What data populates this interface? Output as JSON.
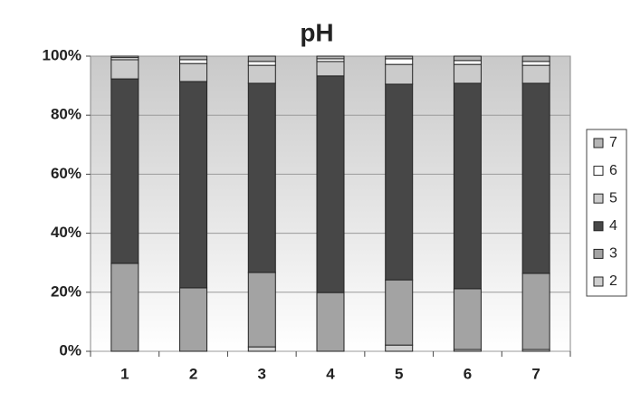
{
  "chart_data": {
    "type": "stacked_bar_percent",
    "title": "pH",
    "categories": [
      "1",
      "2",
      "3",
      "4",
      "5",
      "6",
      "7"
    ],
    "series": [
      {
        "name": "2",
        "color": "#cfcfcf",
        "values": [
          0,
          0,
          1.5,
          0,
          2.1,
          0.6,
          0.6
        ]
      },
      {
        "name": "3",
        "color": "#a3a3a3",
        "values": [
          29.8,
          21.5,
          25.2,
          19.9,
          22.1,
          20.6,
          25.8
        ]
      },
      {
        "name": "4",
        "color": "#474747",
        "values": [
          62.5,
          69.9,
          64.1,
          73.4,
          66.3,
          69.6,
          64.4
        ]
      },
      {
        "name": "5",
        "color": "#cbcbcb",
        "values": [
          6.5,
          6.1,
          6.1,
          4.9,
          6.7,
          6.4,
          6.1
        ]
      },
      {
        "name": "6",
        "color": "#ffffff",
        "values": [
          0.7,
          1.3,
          1.3,
          0.9,
          1.9,
          1.3,
          1.3
        ]
      },
      {
        "name": "7",
        "color": "#b5b5b5",
        "values": [
          0.5,
          1.2,
          1.8,
          0.9,
          0.9,
          1.5,
          1.8
        ]
      }
    ],
    "ylim": [
      0,
      100
    ],
    "yticks": [
      {
        "value": 0,
        "label": "0%"
      },
      {
        "value": 20,
        "label": "20%"
      },
      {
        "value": 40,
        "label": "40%"
      },
      {
        "value": 60,
        "label": "60%"
      },
      {
        "value": 80,
        "label": "80%"
      },
      {
        "value": 100,
        "label": "100%"
      }
    ],
    "grid": true,
    "legend": "right"
  }
}
